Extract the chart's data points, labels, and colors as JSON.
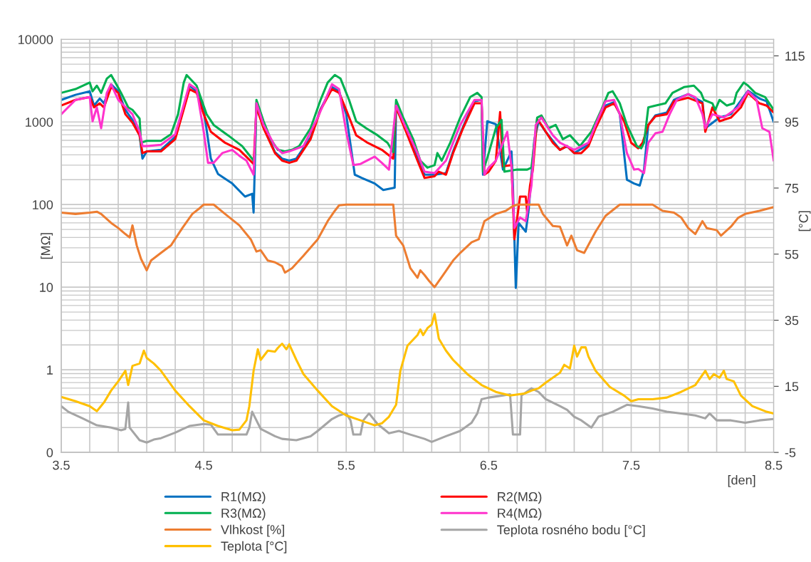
{
  "chart_data": {
    "type": "line",
    "ylabel": "[MΩ]",
    "y2label": "[°C]",
    "xlabel": "[den]",
    "log": "y",
    "grid": true,
    "legend": "bottom",
    "marker": "none",
    "line_style": "solid",
    "xlim": [
      3.5,
      8.5
    ],
    "ylim": [
      0.1,
      10000
    ],
    "y2lim": [
      -5,
      120
    ],
    "xticks": [
      3.5,
      {
        "value": 3.7,
        "label": null
      },
      {
        "value": 3.9,
        "label": null
      },
      {
        "value": 4.1,
        "label": null
      },
      {
        "value": 4.3,
        "label": null
      },
      4.5,
      {
        "value": 4.7,
        "label": null
      },
      {
        "value": 4.9,
        "label": null
      },
      {
        "value": 5.1,
        "label": null
      },
      {
        "value": 5.3,
        "label": null
      },
      5.5,
      {
        "value": 5.7,
        "label": null
      },
      {
        "value": 5.9,
        "label": null
      },
      {
        "value": 6.1,
        "label": null
      },
      {
        "value": 6.3,
        "label": null
      },
      6.5,
      {
        "value": 6.7,
        "label": null
      },
      {
        "value": 6.9,
        "label": null
      },
      {
        "value": 7.1,
        "label": null
      },
      {
        "value": 7.3,
        "label": null
      },
      7.5,
      {
        "value": 7.7,
        "label": null
      },
      {
        "value": 7.9,
        "label": null
      },
      {
        "value": 8.1,
        "label": null
      },
      {
        "value": 8.3,
        "label": null
      },
      8.5
    ],
    "yticks": [
      {
        "value": 0.1,
        "label": "0"
      },
      1,
      10,
      100,
      1000,
      10000
    ],
    "y2ticks": [
      -5,
      15,
      35,
      55,
      75,
      95,
      115
    ],
    "series": [
      {
        "name": "R1(MΩ)",
        "color": "#0070c0",
        "axis": "y",
        "x": [
          3.5,
          3.6,
          3.7,
          3.73,
          3.77,
          3.8,
          3.85,
          3.9,
          3.95,
          4.0,
          4.05,
          4.07,
          4.1,
          4.2,
          4.3,
          4.35,
          4.4,
          4.45,
          4.5,
          4.55,
          4.6,
          4.7,
          4.79,
          4.84,
          4.85,
          4.87,
          4.92,
          5.0,
          5.05,
          5.1,
          5.15,
          5.25,
          5.32,
          5.4,
          5.45,
          5.5,
          5.56,
          5.61,
          5.7,
          5.76,
          5.84,
          5.85,
          5.92,
          6.0,
          6.05,
          6.12,
          6.2,
          6.25,
          6.32,
          6.4,
          6.45,
          6.46,
          6.49,
          6.55,
          6.6,
          6.66,
          6.67,
          6.69,
          6.71,
          6.76,
          6.78,
          6.82,
          6.85,
          6.9,
          6.95,
          7.0,
          7.05,
          7.1,
          7.2,
          7.25,
          7.32,
          7.38,
          7.42,
          7.47,
          7.52,
          7.56,
          7.59,
          7.62,
          7.67,
          7.75,
          7.8,
          7.9,
          8.0,
          8.02,
          8.12,
          8.2,
          8.32,
          8.4,
          8.45,
          8.5
        ],
        "values": [
          1850,
          2130,
          2350,
          1580,
          1920,
          1680,
          2860,
          2350,
          1400,
          1060,
          690,
          360,
          440,
          460,
          660,
          1300,
          2750,
          2350,
          1400,
          360,
          235,
          180,
          125,
          135,
          80,
          1680,
          870,
          430,
          360,
          340,
          360,
          650,
          1430,
          2640,
          2350,
          1240,
          230,
          210,
          180,
          150,
          160,
          1580,
          800,
          380,
          230,
          230,
          240,
          440,
          870,
          1780,
          1850,
          230,
          1020,
          940,
          265,
          440,
          170,
          9.8,
          60,
          47,
          85,
          600,
          1020,
          760,
          590,
          460,
          510,
          420,
          530,
          870,
          1580,
          1740,
          1240,
          200,
          180,
          170,
          265,
          920,
          1200,
          1300,
          1850,
          2170,
          1740,
          840,
          1130,
          1240,
          2390,
          1920,
          1780,
          1000
        ]
      },
      {
        "name": "R2(MΩ)",
        "color": "#ff0000",
        "axis": "y",
        "x": [
          3.5,
          3.6,
          3.7,
          3.73,
          3.77,
          3.8,
          3.85,
          3.9,
          3.95,
          4.0,
          4.05,
          4.07,
          4.1,
          4.2,
          4.3,
          4.35,
          4.4,
          4.45,
          4.5,
          4.55,
          4.65,
          4.75,
          4.85,
          4.87,
          4.92,
          5.0,
          5.05,
          5.1,
          5.15,
          5.25,
          5.32,
          5.4,
          5.45,
          5.5,
          5.57,
          5.65,
          5.75,
          5.83,
          5.85,
          5.92,
          6.0,
          6.05,
          6.12,
          6.15,
          6.2,
          6.25,
          6.32,
          6.4,
          6.45,
          6.47,
          6.5,
          6.55,
          6.58,
          6.6,
          6.66,
          6.68,
          6.72,
          6.76,
          6.77,
          6.79,
          6.81,
          6.84,
          6.87,
          6.9,
          6.95,
          7.0,
          7.05,
          7.1,
          7.15,
          7.2,
          7.25,
          7.32,
          7.38,
          7.45,
          7.5,
          7.55,
          7.58,
          7.62,
          7.67,
          7.75,
          7.8,
          7.9,
          8.0,
          8.02,
          8.07,
          8.12,
          8.2,
          8.27,
          8.32,
          8.4,
          8.45,
          8.5
        ],
        "values": [
          1580,
          1850,
          2000,
          1500,
          1680,
          1500,
          2640,
          2250,
          1240,
          980,
          690,
          420,
          440,
          440,
          620,
          1240,
          2500,
          2250,
          1240,
          760,
          560,
          460,
          310,
          1500,
          840,
          420,
          340,
          320,
          340,
          620,
          1400,
          2500,
          2250,
          1400,
          690,
          560,
          460,
          360,
          1500,
          760,
          340,
          210,
          220,
          250,
          230,
          420,
          840,
          1680,
          1680,
          230,
          250,
          340,
          1320,
          290,
          300,
          38,
          125,
          125,
          80,
          170,
          265,
          1080,
          920,
          760,
          560,
          460,
          510,
          420,
          420,
          510,
          840,
          1500,
          1680,
          1020,
          560,
          480,
          560,
          920,
          1170,
          1240,
          1780,
          1960,
          1680,
          760,
          1500,
          1020,
          1130,
          1500,
          2250,
          1680,
          1580,
          1300
        ]
      },
      {
        "name": "R3(MΩ)",
        "color": "#00b050",
        "axis": "y",
        "x": [
          3.5,
          3.6,
          3.7,
          3.72,
          3.75,
          3.78,
          3.82,
          3.85,
          3.88,
          3.92,
          3.97,
          4.0,
          4.05,
          4.06,
          4.1,
          4.2,
          4.27,
          4.32,
          4.36,
          4.38,
          4.45,
          4.52,
          4.57,
          4.67,
          4.77,
          4.85,
          4.86,
          4.87,
          4.92,
          4.97,
          5.02,
          5.07,
          5.12,
          5.17,
          5.25,
          5.32,
          5.37,
          5.42,
          5.46,
          5.52,
          5.57,
          5.64,
          5.72,
          5.79,
          5.83,
          5.85,
          5.9,
          5.97,
          6.02,
          6.07,
          6.12,
          6.14,
          6.17,
          6.23,
          6.3,
          6.37,
          6.42,
          6.45,
          6.46,
          6.5,
          6.55,
          6.59,
          6.61,
          6.7,
          6.77,
          6.8,
          6.82,
          6.84,
          6.87,
          6.92,
          6.97,
          7.02,
          7.07,
          7.14,
          7.22,
          7.29,
          7.34,
          7.37,
          7.42,
          7.47,
          7.54,
          7.57,
          7.59,
          7.62,
          7.67,
          7.74,
          7.79,
          7.87,
          7.94,
          7.99,
          8.01,
          8.07,
          8.09,
          8.12,
          8.17,
          8.22,
          8.24,
          8.29,
          8.32,
          8.37,
          8.44,
          8.5
        ],
        "values": [
          2250,
          2500,
          3000,
          2350,
          2750,
          2250,
          3350,
          3700,
          3000,
          2250,
          1500,
          1400,
          1100,
          560,
          590,
          590,
          710,
          1240,
          3000,
          3700,
          2750,
          1240,
          920,
          690,
          510,
          340,
          420,
          1850,
          1020,
          620,
          460,
          440,
          460,
          510,
          840,
          1850,
          3000,
          3700,
          3350,
          1850,
          1020,
          840,
          690,
          560,
          430,
          1850,
          1130,
          620,
          340,
          280,
          300,
          420,
          340,
          560,
          1130,
          2000,
          2250,
          2000,
          250,
          420,
          840,
          1060,
          250,
          265,
          265,
          280,
          560,
          1130,
          1200,
          840,
          920,
          620,
          690,
          510,
          760,
          1400,
          2250,
          2350,
          1680,
          920,
          510,
          480,
          560,
          1500,
          1580,
          1680,
          2250,
          2640,
          2750,
          2250,
          1850,
          1680,
          1400,
          1850,
          1580,
          1680,
          2250,
          3000,
          2750,
          2250,
          2000,
          1400
        ]
      },
      {
        "name": "R4(MΩ)",
        "color": "#ff33cc",
        "axis": "y",
        "x": [
          3.5,
          3.6,
          3.7,
          3.72,
          3.75,
          3.78,
          3.82,
          3.85,
          3.9,
          4.0,
          4.05,
          4.07,
          4.1,
          4.2,
          4.3,
          4.35,
          4.4,
          4.45,
          4.5,
          4.53,
          4.57,
          4.63,
          4.7,
          4.75,
          4.8,
          4.85,
          4.87,
          4.92,
          5.0,
          5.05,
          5.1,
          5.2,
          5.3,
          5.4,
          5.45,
          5.5,
          5.55,
          5.6,
          5.7,
          5.75,
          5.8,
          5.85,
          5.92,
          6.0,
          6.05,
          6.12,
          6.2,
          6.3,
          6.4,
          6.45,
          6.47,
          6.5,
          6.55,
          6.6,
          6.63,
          6.66,
          6.68,
          6.72,
          6.76,
          6.8,
          6.83,
          6.87,
          6.95,
          7.0,
          7.1,
          7.2,
          7.25,
          7.32,
          7.38,
          7.42,
          7.47,
          7.52,
          7.55,
          7.59,
          7.62,
          7.67,
          7.72,
          7.77,
          7.82,
          7.9,
          7.95,
          8.0,
          8.02,
          8.07,
          8.15,
          8.25,
          8.32,
          8.38,
          8.42,
          8.47,
          8.5
        ],
        "values": [
          1240,
          1850,
          2000,
          1020,
          1500,
          840,
          2250,
          2860,
          1850,
          1240,
          760,
          510,
          510,
          530,
          710,
          1400,
          2860,
          2500,
          760,
          320,
          320,
          420,
          460,
          390,
          340,
          230,
          1680,
          920,
          510,
          420,
          440,
          510,
          1130,
          2860,
          2500,
          760,
          300,
          310,
          380,
          320,
          265,
          1580,
          840,
          420,
          250,
          240,
          340,
          920,
          1850,
          1850,
          230,
          280,
          340,
          560,
          760,
          280,
          52,
          70,
          63,
          170,
          920,
          1130,
          690,
          560,
          460,
          560,
          920,
          1780,
          1850,
          1240,
          420,
          265,
          270,
          240,
          560,
          730,
          760,
          1240,
          1850,
          2170,
          2000,
          1240,
          840,
          1240,
          1130,
          1500,
          2350,
          1850,
          840,
          760,
          340
        ]
      },
      {
        "name": "Vlhkost [%]",
        "color": "#ed7d31",
        "axis": "y",
        "x": [
          3.5,
          3.6,
          3.7,
          3.75,
          3.78,
          3.85,
          3.9,
          3.95,
          3.98,
          4.0,
          4.03,
          4.06,
          4.1,
          4.13,
          4.2,
          4.27,
          4.35,
          4.42,
          4.47,
          4.5,
          4.57,
          4.65,
          4.75,
          4.83,
          4.87,
          4.9,
          4.95,
          5.0,
          5.05,
          5.07,
          5.12,
          5.2,
          5.3,
          5.37,
          5.42,
          5.45,
          5.5,
          5.83,
          5.85,
          5.9,
          5.95,
          6.0,
          6.02,
          6.05,
          6.08,
          6.12,
          6.18,
          6.25,
          6.3,
          6.38,
          6.43,
          6.47,
          6.55,
          6.62,
          6.67,
          6.7,
          6.85,
          6.88,
          6.95,
          7.0,
          7.05,
          7.08,
          7.12,
          7.17,
          7.25,
          7.32,
          7.42,
          7.65,
          7.72,
          7.8,
          7.85,
          7.9,
          7.95,
          8.0,
          8.03,
          8.1,
          8.13,
          8.2,
          8.25,
          8.3,
          8.4,
          8.5
        ],
        "values": [
          80,
          77,
          80,
          82,
          77,
          60,
          52,
          44,
          40,
          56,
          32,
          22,
          16,
          21,
          26,
          32,
          52,
          77,
          90,
          100,
          100,
          77,
          56,
          38,
          27,
          28,
          21,
          20,
          18,
          15,
          17,
          24,
          38,
          63,
          84,
          98,
          100,
          100,
          42,
          32,
          17,
          13,
          16,
          14,
          12,
          10,
          14,
          21,
          26,
          35,
          38,
          63,
          77,
          84,
          96,
          100,
          100,
          77,
          55,
          54,
          32,
          42,
          28,
          26,
          47,
          73,
          100,
          100,
          84,
          80,
          70,
          52,
          44,
          63,
          52,
          49,
          42,
          54,
          69,
          77,
          84,
          93
        ]
      },
      {
        "name": "Teplota rosného bodu [°C]",
        "color": "#a5a5a5",
        "axis": "y2",
        "x": [
          3.5,
          3.55,
          3.65,
          3.75,
          3.85,
          3.92,
          3.95,
          3.97,
          3.98,
          4.05,
          4.1,
          4.15,
          4.2,
          4.3,
          4.4,
          4.5,
          4.55,
          4.6,
          4.7,
          4.8,
          4.82,
          4.84,
          4.9,
          5.0,
          5.05,
          5.15,
          5.25,
          5.3,
          5.4,
          5.45,
          5.5,
          5.53,
          5.55,
          5.6,
          5.62,
          5.66,
          5.72,
          5.8,
          5.87,
          5.95,
          6.05,
          6.1,
          6.2,
          6.3,
          6.38,
          6.42,
          6.45,
          6.5,
          6.6,
          6.65,
          6.67,
          6.72,
          6.73,
          6.8,
          6.85,
          6.9,
          7.0,
          7.05,
          7.1,
          7.15,
          7.22,
          7.27,
          7.37,
          7.47,
          7.55,
          7.65,
          7.75,
          7.85,
          7.95,
          8.02,
          8.05,
          8.1,
          8.2,
          8.3,
          8.4,
          8.5
        ],
        "values": [
          9.0,
          7.3,
          5.3,
          3.2,
          2.5,
          1.7,
          2.1,
          10.1,
          2.5,
          -1.3,
          -2.0,
          -1.1,
          -0.7,
          1.0,
          3.0,
          3.6,
          3.4,
          0.4,
          0.4,
          0.4,
          2.5,
          7.3,
          2.1,
          -0.1,
          -0.9,
          -1.3,
          -0.1,
          1.5,
          5.1,
          6.2,
          6.8,
          4.7,
          0.4,
          0.4,
          4.7,
          6.8,
          3.6,
          0.8,
          1.5,
          0.4,
          -0.9,
          -1.8,
          -0.1,
          1.5,
          4.0,
          6.8,
          11.1,
          11.6,
          12.2,
          12.6,
          0.4,
          0.4,
          12.2,
          14.4,
          13.3,
          11.1,
          9.0,
          7.9,
          5.8,
          4.7,
          2.5,
          5.8,
          7.3,
          9.4,
          9.0,
          8.3,
          7.3,
          6.8,
          6.2,
          5.3,
          6.8,
          4.7,
          4.7,
          4.0,
          4.7,
          5.1
        ]
      },
      {
        "name": "Teplota [°C]",
        "color": "#ffc000",
        "axis": "y2",
        "x": [
          3.5,
          3.6,
          3.7,
          3.75,
          3.8,
          3.85,
          3.9,
          3.95,
          3.97,
          4.0,
          4.05,
          4.08,
          4.1,
          4.15,
          4.2,
          4.3,
          4.4,
          4.5,
          4.6,
          4.7,
          4.75,
          4.8,
          4.82,
          4.85,
          4.88,
          4.9,
          4.95,
          5.0,
          5.02,
          5.05,
          5.08,
          5.1,
          5.15,
          5.2,
          5.3,
          5.4,
          5.5,
          5.6,
          5.7,
          5.75,
          5.8,
          5.85,
          5.88,
          5.93,
          6.0,
          6.02,
          6.04,
          6.07,
          6.1,
          6.12,
          6.15,
          6.2,
          6.25,
          6.35,
          6.45,
          6.55,
          6.65,
          6.75,
          6.8,
          6.85,
          6.9,
          6.95,
          7.0,
          7.03,
          7.07,
          7.1,
          7.12,
          7.15,
          7.18,
          7.2,
          7.25,
          7.35,
          7.45,
          7.5,
          7.55,
          7.65,
          7.75,
          7.85,
          7.95,
          8.02,
          8.05,
          8.08,
          8.12,
          8.15,
          8.17,
          8.22,
          8.27,
          8.35,
          8.45,
          8.5
        ],
        "values": [
          11.8,
          10.5,
          9.0,
          7.5,
          10.1,
          13.7,
          16.5,
          19.7,
          15.4,
          21.2,
          21.9,
          25.8,
          23.6,
          21.9,
          19.7,
          13.7,
          9.0,
          4.7,
          3.0,
          1.7,
          1.9,
          4.7,
          9.0,
          19.7,
          26.2,
          23.0,
          25.8,
          25.5,
          26.6,
          27.9,
          26.2,
          27.7,
          23.0,
          18.7,
          13.7,
          9.0,
          6.2,
          4.7,
          3.2,
          3.8,
          5.8,
          9.4,
          19.7,
          27.3,
          30.5,
          32.2,
          30.5,
          32.6,
          33.7,
          36.9,
          29.4,
          25.8,
          23.0,
          18.7,
          15.4,
          13.3,
          12.2,
          12.8,
          13.7,
          14.4,
          16.1,
          17.6,
          19.1,
          21.5,
          20.4,
          27.3,
          24.0,
          26.8,
          26.8,
          24.0,
          19.7,
          14.8,
          12.2,
          10.5,
          11.1,
          11.1,
          11.6,
          13.3,
          15.4,
          19.7,
          17.2,
          18.7,
          17.6,
          19.7,
          17.2,
          16.5,
          12.2,
          9.0,
          7.3,
          6.8
        ]
      }
    ]
  }
}
